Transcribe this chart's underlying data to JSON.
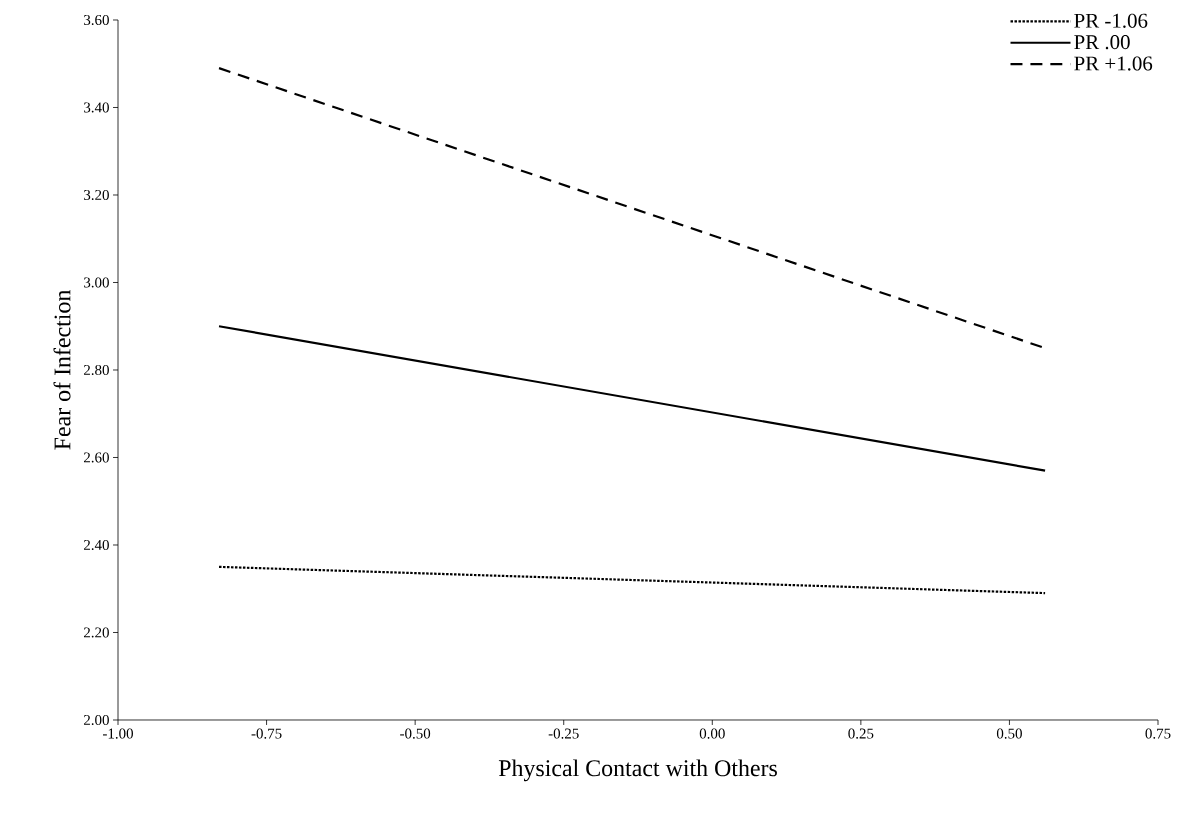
{
  "chart_data": {
    "type": "line",
    "xlabel": "Physical Contact with Others",
    "ylabel": "Fear of Infection",
    "x": [
      -0.83,
      0.56
    ],
    "series": [
      {
        "name": "PR -1.06",
        "color": "#000000",
        "line_style": "dotted",
        "values": [
          2.35,
          2.29
        ]
      },
      {
        "name": "PR .00",
        "color": "#000000",
        "line_style": "solid",
        "values": [
          2.9,
          2.57
        ]
      },
      {
        "name": "PR +1.06",
        "color": "#000000",
        "line_style": "dashed",
        "values": [
          3.49,
          2.85
        ]
      }
    ],
    "xlim": [
      -1.0,
      0.75
    ],
    "ylim": [
      2.0,
      3.6
    ],
    "xticks": [
      {
        "value": -1.0,
        "label": "-1.00"
      },
      {
        "value": -0.75,
        "label": "-0.75"
      },
      {
        "value": -0.5,
        "label": "-0.50"
      },
      {
        "value": -0.25,
        "label": "-0.25"
      },
      {
        "value": 0,
        "label": "0.00"
      },
      {
        "value": 0.25,
        "label": "0.25"
      },
      {
        "value": 0.5,
        "label": "0.50"
      },
      {
        "value": 0.75,
        "label": "0.75"
      }
    ],
    "yticks": [
      {
        "value": 2.0,
        "label": "2.00"
      },
      {
        "value": 2.2,
        "label": "2.20"
      },
      {
        "value": 2.4,
        "label": "2.40"
      },
      {
        "value": 2.6,
        "label": "2.60"
      },
      {
        "value": 2.8,
        "label": "2.80"
      },
      {
        "value": 3.0,
        "label": "3.00"
      },
      {
        "value": 3.2,
        "label": "3.20"
      },
      {
        "value": 3.4,
        "label": "3.40"
      },
      {
        "value": 3.6,
        "label": "3.60"
      }
    ],
    "legend": "top right",
    "grid": false,
    "marker": "none"
  }
}
